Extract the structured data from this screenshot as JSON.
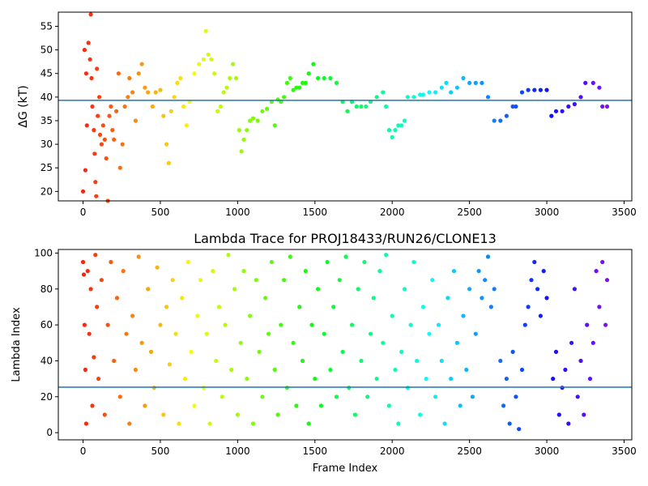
{
  "chart_data": [
    {
      "type": "scatter",
      "title": "",
      "xlabel": "",
      "ylabel": "ΔG (kT)",
      "xlim": [
        -160,
        3550
      ],
      "ylim": [
        18,
        58
      ],
      "xticks": [
        0,
        500,
        1000,
        1500,
        2000,
        2500,
        3000,
        3500
      ],
      "xtick_labels": [
        "0",
        "500",
        "1000",
        "1500",
        "2000",
        "2500",
        "3000",
        "3500"
      ],
      "yticks": [
        20,
        25,
        30,
        35,
        40,
        45,
        50,
        55
      ],
      "ytick_labels": [
        "20",
        "25",
        "30",
        "35",
        "40",
        "45",
        "50",
        "55"
      ],
      "hline": 39.3,
      "line_color": "#1f77b4",
      "colormap": "rainbow (reversed: red at frame 0 → violet at end)",
      "points": [
        [
          0,
          20
        ],
        [
          10,
          50
        ],
        [
          15,
          24.5
        ],
        [
          20,
          45
        ],
        [
          25,
          34
        ],
        [
          35,
          51.5
        ],
        [
          45,
          48
        ],
        [
          50,
          57.5
        ],
        [
          55,
          44
        ],
        [
          60,
          38
        ],
        [
          70,
          33
        ],
        [
          75,
          28
        ],
        [
          80,
          22
        ],
        [
          85,
          19
        ],
        [
          90,
          46
        ],
        [
          95,
          36
        ],
        [
          105,
          40
        ],
        [
          110,
          32
        ],
        [
          120,
          30
        ],
        [
          130,
          34
        ],
        [
          140,
          31
        ],
        [
          150,
          27
        ],
        [
          160,
          18
        ],
        [
          170,
          36
        ],
        [
          180,
          38
        ],
        [
          190,
          33
        ],
        [
          200,
          31
        ],
        [
          215,
          37
        ],
        [
          230,
          45
        ],
        [
          240,
          25
        ],
        [
          255,
          30
        ],
        [
          270,
          38
        ],
        [
          290,
          40
        ],
        [
          300,
          44
        ],
        [
          320,
          41
        ],
        [
          340,
          35
        ],
        [
          360,
          45
        ],
        [
          380,
          47
        ],
        [
          400,
          42
        ],
        [
          420,
          41
        ],
        [
          450,
          38
        ],
        [
          470,
          41
        ],
        [
          500,
          41.5
        ],
        [
          520,
          36
        ],
        [
          540,
          30
        ],
        [
          555,
          26
        ],
        [
          570,
          37
        ],
        [
          590,
          40
        ],
        [
          610,
          43
        ],
        [
          630,
          44
        ],
        [
          650,
          38
        ],
        [
          670,
          34
        ],
        [
          690,
          39
        ],
        [
          720,
          45
        ],
        [
          750,
          47
        ],
        [
          780,
          48
        ],
        [
          795,
          54
        ],
        [
          810,
          49
        ],
        [
          830,
          48
        ],
        [
          850,
          45
        ],
        [
          870,
          37
        ],
        [
          890,
          38
        ],
        [
          910,
          41
        ],
        [
          930,
          42
        ],
        [
          950,
          44
        ],
        [
          970,
          47
        ],
        [
          990,
          44
        ],
        [
          1010,
          33
        ],
        [
          1025,
          28.5
        ],
        [
          1040,
          31
        ],
        [
          1060,
          33
        ],
        [
          1080,
          35
        ],
        [
          1100,
          35.5
        ],
        [
          1130,
          35
        ],
        [
          1160,
          37
        ],
        [
          1190,
          37.5
        ],
        [
          1220,
          39
        ],
        [
          1240,
          34
        ],
        [
          1260,
          39.5
        ],
        [
          1280,
          39
        ],
        [
          1300,
          40
        ],
        [
          1320,
          43
        ],
        [
          1340,
          44
        ],
        [
          1360,
          41.5
        ],
        [
          1380,
          42
        ],
        [
          1400,
          42
        ],
        [
          1420,
          43
        ],
        [
          1440,
          43
        ],
        [
          1460,
          45
        ],
        [
          1490,
          47
        ],
        [
          1520,
          44
        ],
        [
          1560,
          44
        ],
        [
          1600,
          44
        ],
        [
          1640,
          43
        ],
        [
          1680,
          39
        ],
        [
          1710,
          37
        ],
        [
          1740,
          39
        ],
        [
          1770,
          38
        ],
        [
          1800,
          38
        ],
        [
          1830,
          38
        ],
        [
          1860,
          39
        ],
        [
          1900,
          40
        ],
        [
          1940,
          41
        ],
        [
          1960,
          38
        ],
        [
          1980,
          33
        ],
        [
          2000,
          31.5
        ],
        [
          2020,
          33
        ],
        [
          2040,
          34
        ],
        [
          2060,
          34
        ],
        [
          2080,
          35
        ],
        [
          2100,
          40
        ],
        [
          2140,
          40
        ],
        [
          2180,
          40.5
        ],
        [
          2200,
          40.5
        ],
        [
          2240,
          41
        ],
        [
          2280,
          41
        ],
        [
          2320,
          42
        ],
        [
          2350,
          43
        ],
        [
          2380,
          41
        ],
        [
          2420,
          42
        ],
        [
          2460,
          44
        ],
        [
          2500,
          43
        ],
        [
          2540,
          43
        ],
        [
          2580,
          43
        ],
        [
          2620,
          40
        ],
        [
          2660,
          35
        ],
        [
          2700,
          35
        ],
        [
          2740,
          36
        ],
        [
          2780,
          38
        ],
        [
          2800,
          38
        ],
        [
          2840,
          41
        ],
        [
          2880,
          41.5
        ],
        [
          2920,
          41.5
        ],
        [
          2960,
          41.5
        ],
        [
          3000,
          41.5
        ],
        [
          3030,
          36
        ],
        [
          3060,
          37
        ],
        [
          3100,
          37
        ],
        [
          3140,
          38
        ],
        [
          3180,
          38.5
        ],
        [
          3220,
          40
        ],
        [
          3250,
          43
        ],
        [
          3300,
          43
        ],
        [
          3340,
          42
        ],
        [
          3360,
          38
        ],
        [
          3390,
          38
        ]
      ]
    },
    {
      "type": "scatter",
      "title": "Lambda Trace for PROJ18433/RUN26/CLONE13",
      "xlabel": "Frame Index",
      "ylabel": "Lambda Index",
      "xlim": [
        -160,
        3550
      ],
      "ylim": [
        -4,
        102
      ],
      "xticks": [
        0,
        500,
        1000,
        1500,
        2000,
        2500,
        3000,
        3500
      ],
      "xtick_labels": [
        "0",
        "500",
        "1000",
        "1500",
        "2000",
        "2500",
        "3000",
        "3500"
      ],
      "yticks": [
        0,
        20,
        40,
        60,
        80,
        100
      ],
      "ytick_labels": [
        "0",
        "20",
        "40",
        "60",
        "80",
        "100"
      ],
      "hline": 25.3,
      "line_color": "#1f77b4",
      "colormap": "rainbow (reversed: red at frame 0 → violet at end)",
      "points": [
        [
          0,
          95
        ],
        [
          5,
          88
        ],
        [
          10,
          60
        ],
        [
          15,
          35
        ],
        [
          20,
          5
        ],
        [
          30,
          90
        ],
        [
          40,
          55
        ],
        [
          50,
          80
        ],
        [
          60,
          15
        ],
        [
          70,
          42
        ],
        [
          80,
          99
        ],
        [
          90,
          70
        ],
        [
          100,
          30
        ],
        [
          120,
          85
        ],
        [
          140,
          10
        ],
        [
          160,
          60
        ],
        [
          180,
          95
        ],
        [
          200,
          40
        ],
        [
          220,
          75
        ],
        [
          240,
          20
        ],
        [
          260,
          90
        ],
        [
          280,
          55
        ],
        [
          300,
          5
        ],
        [
          320,
          65
        ],
        [
          340,
          35
        ],
        [
          360,
          98
        ],
        [
          380,
          50
        ],
        [
          400,
          15
        ],
        [
          420,
          80
        ],
        [
          440,
          45
        ],
        [
          460,
          25
        ],
        [
          480,
          92
        ],
        [
          500,
          60
        ],
        [
          520,
          10
        ],
        [
          540,
          70
        ],
        [
          560,
          38
        ],
        [
          580,
          85
        ],
        [
          600,
          55
        ],
        [
          620,
          5
        ],
        [
          640,
          75
        ],
        [
          660,
          30
        ],
        [
          680,
          95
        ],
        [
          700,
          45
        ],
        [
          720,
          15
        ],
        [
          740,
          65
        ],
        [
          760,
          85
        ],
        [
          780,
          25
        ],
        [
          800,
          55
        ],
        [
          820,
          5
        ],
        [
          840,
          90
        ],
        [
          860,
          40
        ],
        [
          880,
          70
        ],
        [
          900,
          20
        ],
        [
          920,
          60
        ],
        [
          940,
          99
        ],
        [
          960,
          35
        ],
        [
          980,
          80
        ],
        [
          1000,
          10
        ],
        [
          1020,
          50
        ],
        [
          1040,
          90
        ],
        [
          1060,
          30
        ],
        [
          1080,
          65
        ],
        [
          1100,
          5
        ],
        [
          1120,
          85
        ],
        [
          1140,
          45
        ],
        [
          1160,
          20
        ],
        [
          1180,
          75
        ],
        [
          1200,
          55
        ],
        [
          1220,
          95
        ],
        [
          1240,
          35
        ],
        [
          1260,
          10
        ],
        [
          1280,
          60
        ],
        [
          1300,
          85
        ],
        [
          1320,
          25
        ],
        [
          1340,
          98
        ],
        [
          1360,
          50
        ],
        [
          1380,
          15
        ],
        [
          1400,
          70
        ],
        [
          1420,
          40
        ],
        [
          1440,
          90
        ],
        [
          1460,
          5
        ],
        [
          1480,
          60
        ],
        [
          1500,
          30
        ],
        [
          1520,
          80
        ],
        [
          1540,
          15
        ],
        [
          1560,
          55
        ],
        [
          1580,
          95
        ],
        [
          1600,
          35
        ],
        [
          1620,
          70
        ],
        [
          1640,
          20
        ],
        [
          1660,
          85
        ],
        [
          1680,
          45
        ],
        [
          1700,
          98
        ],
        [
          1720,
          25
        ],
        [
          1740,
          60
        ],
        [
          1760,
          10
        ],
        [
          1780,
          80
        ],
        [
          1800,
          40
        ],
        [
          1820,
          95
        ],
        [
          1840,
          20
        ],
        [
          1860,
          55
        ],
        [
          1880,
          75
        ],
        [
          1900,
          30
        ],
        [
          1920,
          90
        ],
        [
          1940,
          50
        ],
        [
          1960,
          99
        ],
        [
          1980,
          15
        ],
        [
          2000,
          65
        ],
        [
          2020,
          35
        ],
        [
          2040,
          5
        ],
        [
          2060,
          45
        ],
        [
          2080,
          80
        ],
        [
          2100,
          25
        ],
        [
          2120,
          60
        ],
        [
          2140,
          95
        ],
        [
          2160,
          40
        ],
        [
          2180,
          10
        ],
        [
          2200,
          70
        ],
        [
          2220,
          30
        ],
        [
          2240,
          55
        ],
        [
          2260,
          85
        ],
        [
          2280,
          20
        ],
        [
          2300,
          60
        ],
        [
          2320,
          40
        ],
        [
          2340,
          5
        ],
        [
          2360,
          75
        ],
        [
          2380,
          30
        ],
        [
          2400,
          90
        ],
        [
          2420,
          50
        ],
        [
          2440,
          15
        ],
        [
          2460,
          65
        ],
        [
          2480,
          35
        ],
        [
          2500,
          80
        ],
        [
          2520,
          20
        ],
        [
          2540,
          55
        ],
        [
          2560,
          90
        ],
        [
          2580,
          75
        ],
        [
          2600,
          85
        ],
        [
          2620,
          98
        ],
        [
          2640,
          70
        ],
        [
          2660,
          80
        ],
        [
          2700,
          40
        ],
        [
          2720,
          15
        ],
        [
          2740,
          30
        ],
        [
          2760,
          5
        ],
        [
          2780,
          45
        ],
        [
          2800,
          20
        ],
        [
          2820,
          2
        ],
        [
          2840,
          35
        ],
        [
          2860,
          60
        ],
        [
          2880,
          70
        ],
        [
          2900,
          85
        ],
        [
          2920,
          95
        ],
        [
          2940,
          80
        ],
        [
          2960,
          65
        ],
        [
          2980,
          90
        ],
        [
          3000,
          75
        ],
        [
          3040,
          30
        ],
        [
          3060,
          45
        ],
        [
          3080,
          10
        ],
        [
          3100,
          25
        ],
        [
          3120,
          35
        ],
        [
          3140,
          5
        ],
        [
          3160,
          50
        ],
        [
          3180,
          80
        ],
        [
          3200,
          20
        ],
        [
          3220,
          40
        ],
        [
          3240,
          10
        ],
        [
          3260,
          60
        ],
        [
          3280,
          30
        ],
        [
          3300,
          50
        ],
        [
          3320,
          90
        ],
        [
          3340,
          70
        ],
        [
          3360,
          95
        ],
        [
          3380,
          60
        ],
        [
          3390,
          85
        ]
      ]
    }
  ]
}
